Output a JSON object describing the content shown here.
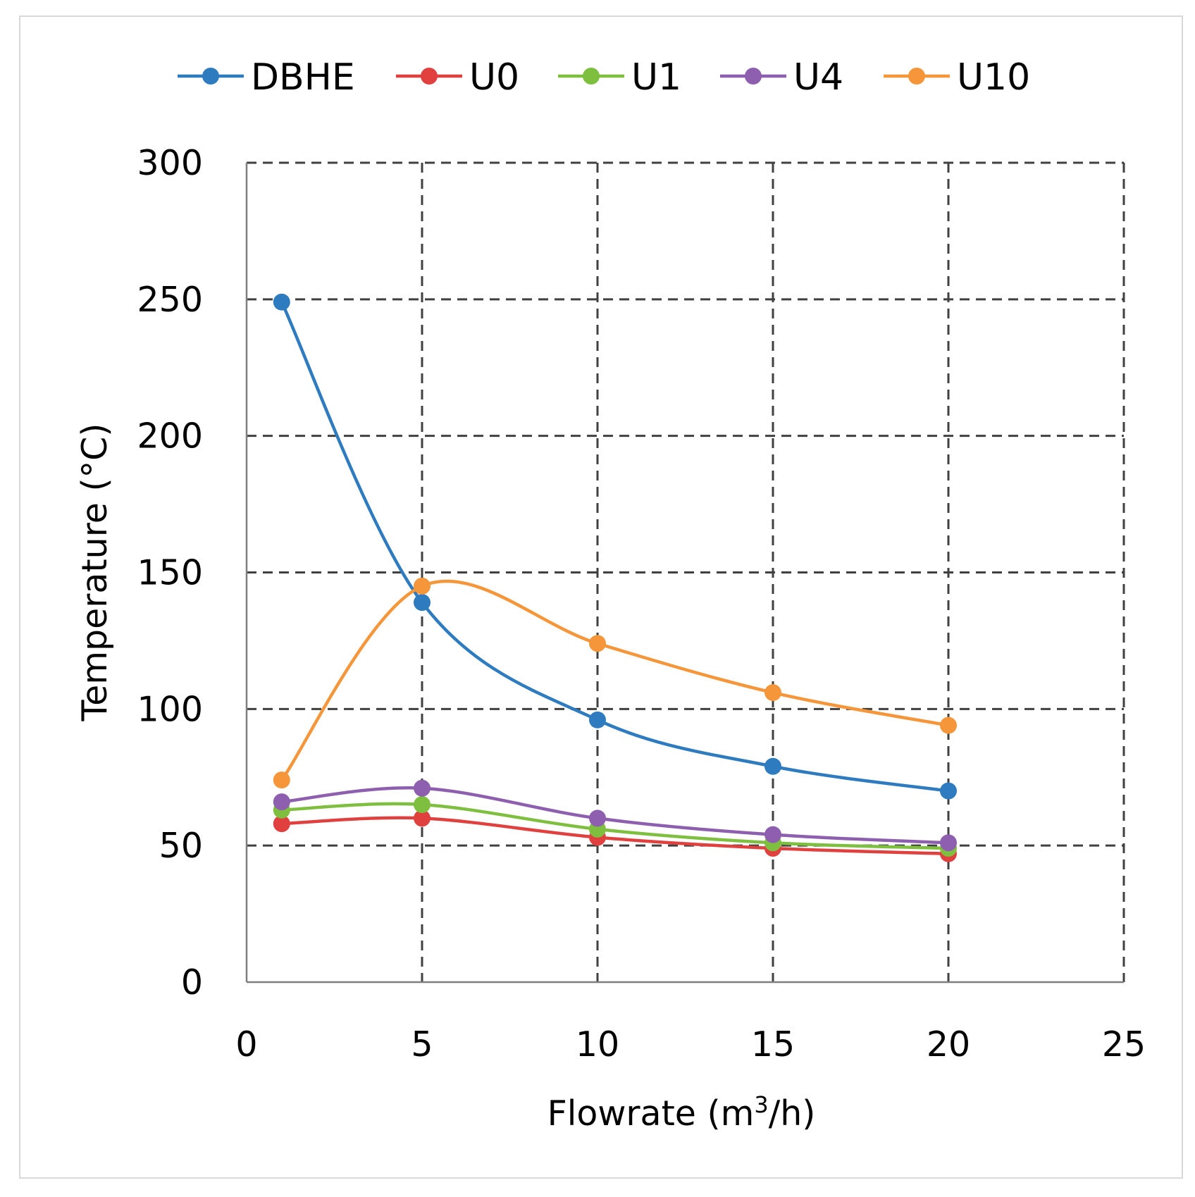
{
  "chart_data": {
    "type": "line",
    "title": "",
    "xlabel_main": "Flowrate (m",
    "xlabel_sup": "3",
    "xlabel_end": "/h)",
    "ylabel": "Temperature (°C)",
    "xlim": [
      0,
      25
    ],
    "ylim": [
      0,
      300
    ],
    "xticks": [
      0,
      5,
      10,
      15,
      20,
      25
    ],
    "yticks": [
      0,
      50,
      100,
      150,
      200,
      250,
      300
    ],
    "grid": true,
    "legend_position": "top",
    "x": [
      1,
      5,
      10,
      15,
      20
    ],
    "series": [
      {
        "name": "DBHE",
        "color": "#2e7bbf",
        "values": [
          249,
          139,
          96,
          79,
          70
        ]
      },
      {
        "name": "U0",
        "color": "#e0413f",
        "values": [
          58,
          60,
          53,
          49,
          47
        ]
      },
      {
        "name": "U1",
        "color": "#7fbf3f",
        "values": [
          63,
          65,
          56,
          51,
          49
        ]
      },
      {
        "name": "U4",
        "color": "#8e5fae",
        "values": [
          66,
          71,
          60,
          54,
          51
        ]
      },
      {
        "name": "U10",
        "color": "#f5963a",
        "values": [
          74,
          145,
          124,
          106,
          94
        ]
      }
    ]
  }
}
